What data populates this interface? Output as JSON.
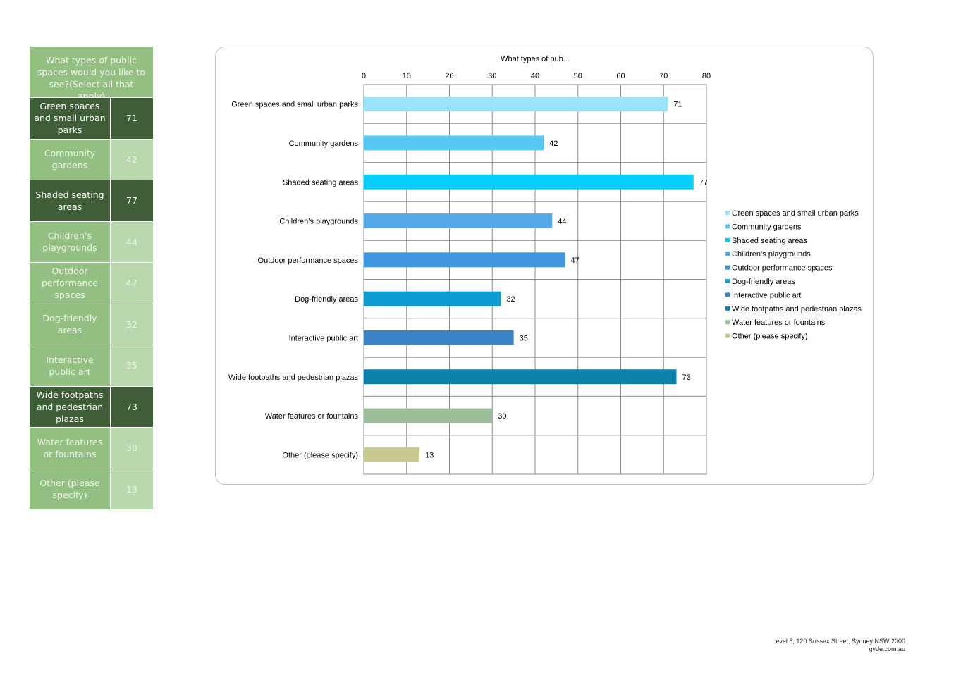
{
  "side_table": {
    "header": "What types of public spaces would you like to see?(Select all that apply)",
    "rows": [
      {
        "label": "Green spaces and small urban parks",
        "value": "71",
        "style": "dark"
      },
      {
        "label": "Community gardens",
        "value": "42",
        "style": "light"
      },
      {
        "label": "Shaded seating areas",
        "value": "77",
        "style": "dark"
      },
      {
        "label": "Children’s playgrounds",
        "value": "44",
        "style": "light"
      },
      {
        "label": "Outdoor performance spaces",
        "value": "47",
        "style": "light"
      },
      {
        "label": "Dog-friendly areas",
        "value": "32",
        "style": "light"
      },
      {
        "label": "Interactive public art",
        "value": "35",
        "style": "light"
      },
      {
        "label": "Wide footpaths and pedestrian plazas",
        "value": "73",
        "style": "dark"
      },
      {
        "label": "Water features or fountains",
        "value": "30",
        "style": "light"
      },
      {
        "label": "Other (please specify)",
        "value": "13",
        "style": "light"
      }
    ],
    "colors": {
      "dark": "#3f5e38",
      "mid": "#94bf83",
      "light": "#b9d8ad"
    }
  },
  "chart_data": {
    "type": "bar",
    "orientation": "horizontal",
    "title": "What types of pub...",
    "categories": [
      "Green spaces and small urban parks",
      "Community gardens",
      "Shaded seating areas",
      "Children’s playgrounds",
      "Outdoor performance spaces",
      "Dog-friendly areas",
      "Interactive public art",
      "Wide footpaths and pedestrian plazas",
      "Water features or fountains",
      "Other (please specify)"
    ],
    "values": [
      71,
      42,
      77,
      44,
      47,
      32,
      35,
      73,
      30,
      13
    ],
    "colors": [
      "#9be3fb",
      "#56c8ef",
      "#08cdf9",
      "#55a9e6",
      "#3f95de",
      "#0c9ed2",
      "#3a83c6",
      "#0a80aa",
      "#9cbd9a",
      "#c7c990"
    ],
    "xlim": [
      0,
      80
    ],
    "xticks": [
      "0",
      "10",
      "20",
      "30",
      "40",
      "50",
      "60",
      "70",
      "80"
    ],
    "x_axis_position": "top",
    "grid": true,
    "data_labels": true,
    "legend_position": "right"
  },
  "footer": {
    "address": "Level 6, 120 Sussex Street, Sydney NSW 2000",
    "website": "gyde.com.au"
  }
}
